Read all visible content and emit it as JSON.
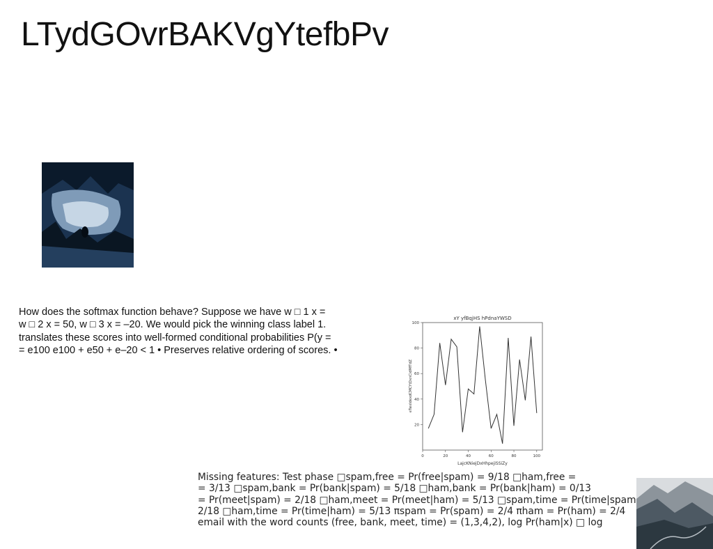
{
  "page": {
    "title": "LTydGOvrBAKVgYtefbPv"
  },
  "images": {
    "forest_photo": "forest-lake-reflection-photo",
    "mountain_photo": "mountain-valley-road-photo"
  },
  "paragraph1": {
    "lines": [
      "How does the softmax function behave? Suppose we have w □ 1 x =",
      "w □ 2 x = 50, w □ 3 x = –20. We would pick the winning class label 1.",
      "translates these scores into well-formed conditional probabilities P(y =",
      "= e100 e100 + e50 + e–20 < 1 • Preserves relative ordering of scores. •"
    ]
  },
  "paragraph2": {
    "lines": [
      "Missing features: Test phase □spam,free = Pr(free|spam) = 9/18 □ham,free =",
      "= 3/13 □spam,bank = Pr(bank|spam) = 5/18 □ham,bank = Pr(bank|ham) = 0/13",
      "= Pr(meet|spam) = 2/18 □ham,meet = Pr(meet|ham) = 5/13 □spam,time = Pr(time|spam)",
      "2/18 □ham,time = Pr(time|ham) = 5/13 πspam = Pr(spam) = 2/4 πham = Pr(ham) = 2/4",
      "email with the word counts (free, bank, meet, time) = (1,3,4,2), log Pr(ham|x) □ log"
    ]
  },
  "chart_data": {
    "type": "line",
    "title": "xY yfBqjHS hPdnaYWSD",
    "xlabel": "LajcKNiejDxHhpejiSSiZy",
    "ylabel": "eTwxIdexdCMCYtDxnCidMfTdZ",
    "x": [
      5,
      10,
      15,
      20,
      25,
      30,
      35,
      40,
      45,
      50,
      55,
      60,
      65,
      70,
      75,
      80,
      85,
      90,
      95,
      100
    ],
    "values": [
      17,
      28,
      84,
      51,
      87,
      81,
      14,
      48,
      44,
      97,
      55,
      17,
      28,
      5,
      88,
      19,
      71,
      39,
      89,
      29
    ],
    "xlim": [
      0,
      105
    ],
    "ylim": [
      0,
      100
    ],
    "xticks": [
      "0",
      "20",
      "40",
      "60",
      "80",
      "100"
    ],
    "yticks": [
      "20",
      "40",
      "60",
      "80",
      "100"
    ],
    "line_color": "#333333",
    "grid": false
  }
}
